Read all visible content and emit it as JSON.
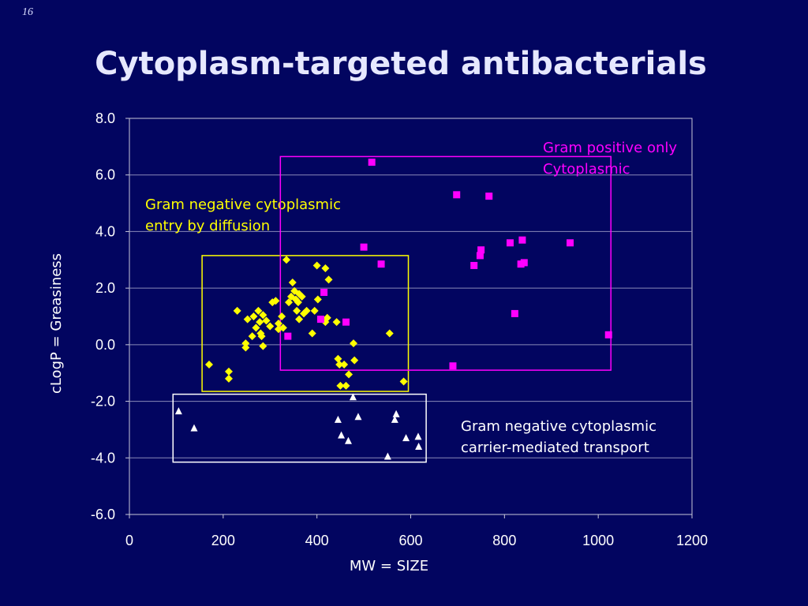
{
  "slide_number": "16",
  "title": "Cytoplasm-targeted antibacterials",
  "colors": {
    "background": "#020560",
    "plot_border": "#c8c8d8",
    "gridline": "#8a8ab8",
    "yellow": "#ffff00",
    "magenta": "#ff00ff",
    "white": "#ffffff",
    "text": "#ffffff"
  },
  "chart_data": {
    "type": "scatter",
    "xlabel": "MW = SIZE",
    "ylabel": "cLogP = Greasiness",
    "xlim": [
      0,
      1200
    ],
    "ylim": [
      -6,
      8
    ],
    "x_ticks": [
      "0",
      "200",
      "400",
      "600",
      "800",
      "1000",
      "1200"
    ],
    "y_ticks": [
      "8.0",
      "6.0",
      "4.0",
      "2.0",
      "0.0",
      "-2.0",
      "-4.0",
      "-6.0"
    ],
    "grid": "horizontal",
    "regions": [
      {
        "label_lines": [
          "Gram negative cytoplasmic",
          "entry by diffusion"
        ],
        "color": "#ffff00",
        "x_range": [
          155,
          595
        ],
        "y_range": [
          -1.65,
          3.15
        ]
      },
      {
        "label_lines": [
          "Gram positive only",
          "Cytoplasmic"
        ],
        "color": "#ff00ff",
        "x_range": [
          322,
          1027
        ],
        "y_range": [
          -0.9,
          6.65
        ]
      },
      {
        "label_lines": [
          "Gram negative cytoplasmic",
          "carrier-mediated transport"
        ],
        "color": "#ffffff",
        "x_range": [
          93,
          633
        ],
        "y_range": [
          -4.15,
          -1.75
        ]
      }
    ],
    "series": [
      {
        "marker": "diamond",
        "color": "#ffff00",
        "points": [
          [
            170,
            -0.7
          ],
          [
            212,
            -0.95
          ],
          [
            212,
            -1.2
          ],
          [
            230,
            1.2
          ],
          [
            248,
            0.05
          ],
          [
            248,
            -0.1
          ],
          [
            252,
            0.9
          ],
          [
            262,
            0.3
          ],
          [
            265,
            1.0
          ],
          [
            270,
            0.6
          ],
          [
            275,
            1.2
          ],
          [
            278,
            0.8
          ],
          [
            280,
            0.4
          ],
          [
            282,
            0.3
          ],
          [
            285,
            -0.05
          ],
          [
            285,
            1.05
          ],
          [
            292,
            0.85
          ],
          [
            300,
            0.65
          ],
          [
            305,
            1.5
          ],
          [
            312,
            1.55
          ],
          [
            318,
            0.75
          ],
          [
            318,
            0.55
          ],
          [
            325,
            1.0
          ],
          [
            328,
            0.6
          ],
          [
            335,
            3.0
          ],
          [
            340,
            1.5
          ],
          [
            345,
            1.7
          ],
          [
            348,
            2.2
          ],
          [
            352,
            1.9
          ],
          [
            355,
            1.6
          ],
          [
            357,
            1.2
          ],
          [
            360,
            1.5
          ],
          [
            362,
            1.8
          ],
          [
            362,
            0.9
          ],
          [
            368,
            1.7
          ],
          [
            372,
            1.1
          ],
          [
            378,
            1.2
          ],
          [
            390,
            0.4
          ],
          [
            395,
            1.2
          ],
          [
            400,
            2.8
          ],
          [
            402,
            1.6
          ],
          [
            418,
            2.7
          ],
          [
            418,
            0.8
          ],
          [
            422,
            0.95
          ],
          [
            425,
            2.3
          ],
          [
            442,
            0.8
          ],
          [
            445,
            -0.5
          ],
          [
            448,
            -0.7
          ],
          [
            450,
            -1.45
          ],
          [
            458,
            -0.7
          ],
          [
            462,
            -1.45
          ],
          [
            468,
            -1.05
          ],
          [
            478,
            0.05
          ],
          [
            480,
            -0.55
          ],
          [
            555,
            0.4
          ],
          [
            585,
            -1.3
          ]
        ]
      },
      {
        "marker": "square",
        "color": "#ff00ff",
        "points": [
          [
            338,
            0.3
          ],
          [
            408,
            0.9
          ],
          [
            415,
            1.85
          ],
          [
            462,
            0.8
          ],
          [
            500,
            3.45
          ],
          [
            517,
            6.45
          ],
          [
            537,
            2.85
          ],
          [
            690,
            -0.75
          ],
          [
            698,
            5.3
          ],
          [
            735,
            2.8
          ],
          [
            748,
            3.15
          ],
          [
            750,
            3.35
          ],
          [
            767,
            5.25
          ],
          [
            812,
            3.6
          ],
          [
            822,
            1.1
          ],
          [
            835,
            2.85
          ],
          [
            838,
            3.7
          ],
          [
            842,
            2.9
          ],
          [
            940,
            3.6
          ],
          [
            1022,
            0.35
          ]
        ]
      },
      {
        "marker": "triangle",
        "color": "#ffffff",
        "points": [
          [
            105,
            -2.35
          ],
          [
            138,
            -2.95
          ],
          [
            445,
            -2.65
          ],
          [
            452,
            -3.2
          ],
          [
            467,
            -3.4
          ],
          [
            477,
            -1.85
          ],
          [
            488,
            -2.55
          ],
          [
            551,
            -3.95
          ],
          [
            566,
            -2.65
          ],
          [
            569,
            -2.45
          ],
          [
            590,
            -3.3
          ],
          [
            616,
            -3.25
          ],
          [
            617,
            -3.6
          ]
        ]
      }
    ]
  }
}
